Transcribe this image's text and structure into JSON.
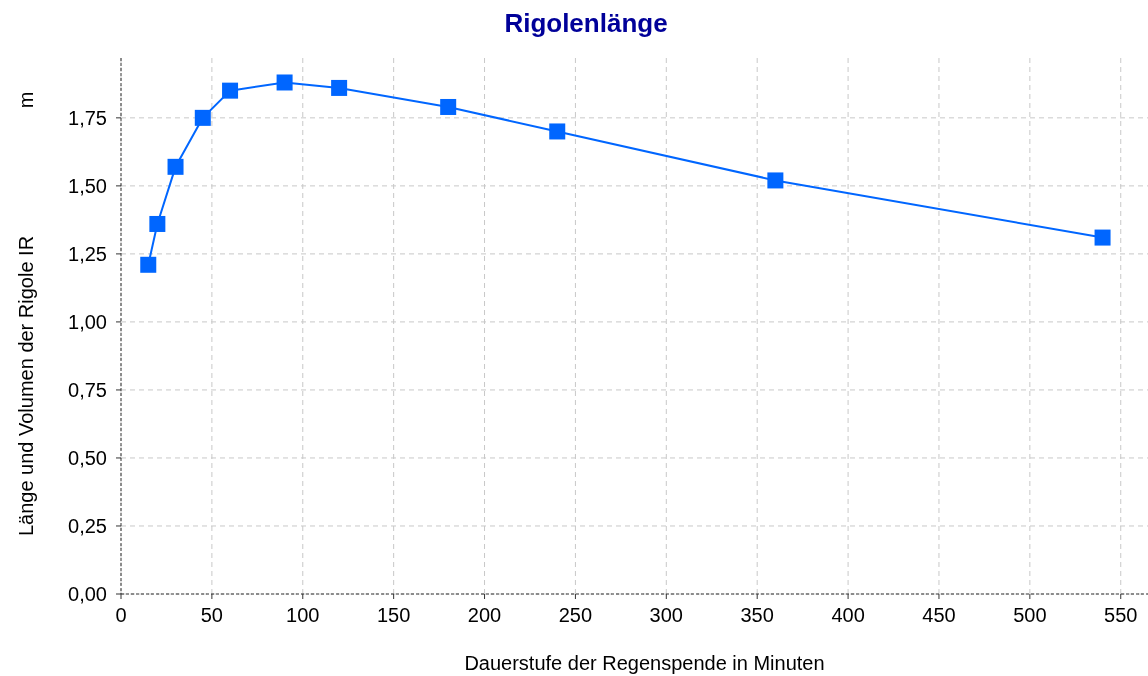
{
  "chart_data": {
    "type": "line",
    "title": "Rigolenlänge",
    "xlabel": "Dauerstufe der Regenspende in Minuten",
    "ylabel": "Länge und Volumen der Rigole IR",
    "annotations": [
      "m"
    ],
    "x": [
      15,
      20,
      30,
      45,
      60,
      90,
      120,
      180,
      240,
      360,
      540
    ],
    "series": [
      {
        "color": "#0066ff",
        "values": [
          1.21,
          1.36,
          1.57,
          1.75,
          1.85,
          1.88,
          1.86,
          1.79,
          1.7,
          1.52,
          1.31
        ]
      }
    ],
    "xlim": [
      0,
      565
    ],
    "xticks": [
      0,
      50,
      100,
      150,
      200,
      250,
      300,
      350,
      400,
      450,
      500,
      550
    ],
    "ylim": [
      0,
      1.97
    ],
    "yticks": [
      {
        "value": 0,
        "label": "0,00"
      },
      {
        "value": 0.25,
        "label": "0,25"
      },
      {
        "value": 0.5,
        "label": "0,50"
      },
      {
        "value": 0.75,
        "label": "0,75"
      },
      {
        "value": 1,
        "label": "1,00"
      },
      {
        "value": 1.25,
        "label": "1,25"
      },
      {
        "value": 1.5,
        "label": "1,50"
      },
      {
        "value": 1.75,
        "label": "1,75"
      }
    ],
    "grid": true,
    "marker": "square",
    "line_style": "solid"
  }
}
